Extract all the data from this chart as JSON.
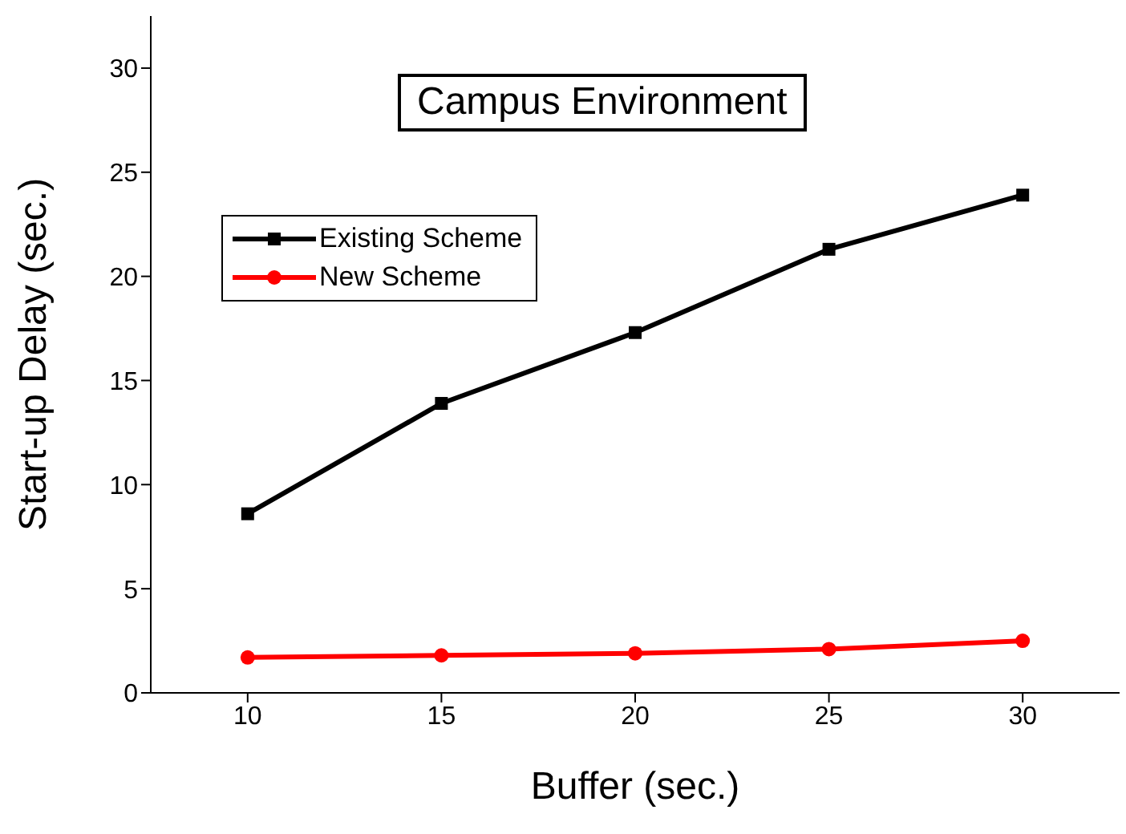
{
  "chart_data": {
    "type": "line",
    "title": "Campus Environment",
    "xlabel": "Buffer (sec.)",
    "ylabel": "Start-up Delay (sec.)",
    "x": [
      10,
      15,
      20,
      25,
      30
    ],
    "series": [
      {
        "name": "Existing Scheme",
        "color": "#000000",
        "marker": "square",
        "values": [
          8.6,
          13.9,
          17.3,
          21.3,
          23.9
        ]
      },
      {
        "name": "New Scheme",
        "color": "#ff0000",
        "marker": "circle",
        "values": [
          1.7,
          1.8,
          1.9,
          2.1,
          2.5
        ]
      }
    ],
    "xlim": [
      7.5,
      32.5
    ],
    "xticks": [
      10,
      15,
      20,
      25,
      30
    ],
    "ylim": [
      0,
      32.5
    ],
    "yticks": [
      0,
      5,
      10,
      15,
      20,
      25,
      30
    ],
    "grid": false,
    "legend": "top left",
    "line_style": "solid"
  }
}
